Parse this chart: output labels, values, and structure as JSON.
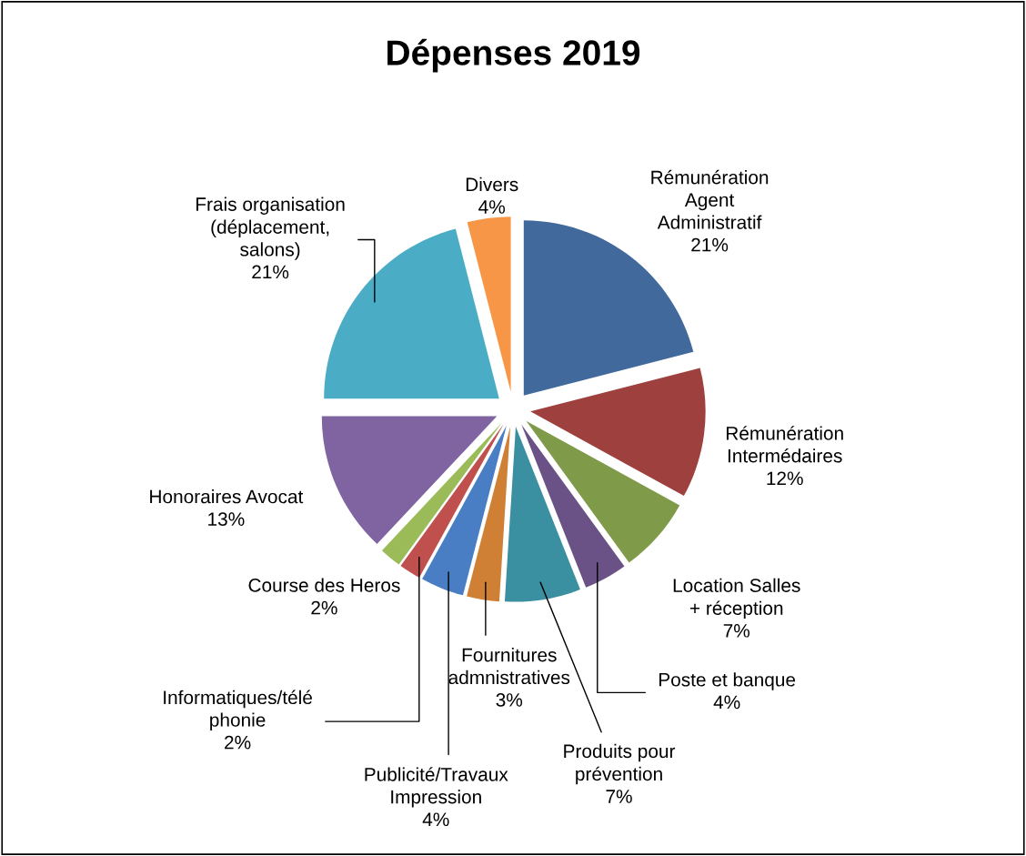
{
  "chart_data": {
    "type": "pie",
    "title": "Dépenses 2019",
    "categories": [
      "Rémunération\nAgent\nAdministratif",
      "Rémunération\nIntermédaires",
      "Location Salles\n+ réception",
      "Poste et banque",
      "Produits pour\nprévention",
      "Fournitures\nadmnistratives",
      "Publicité/Travaux\nImpression",
      "Informatiques/télé\nphonie",
      "Course des Heros",
      "Honoraires Avocat",
      "Frais organisation\n(déplacement,\nsalons)",
      "Divers"
    ],
    "values": [
      21,
      12,
      7,
      4,
      7,
      3,
      4,
      2,
      2,
      13,
      21,
      4
    ],
    "value_labels": [
      "21%",
      "12%",
      "7%",
      "4%",
      "7%",
      "3%",
      "4%",
      "2%",
      "2%",
      "13%",
      "21%",
      "4%"
    ],
    "colors": [
      "#41699c",
      "#9e403d",
      "#7f9b4a",
      "#6a5186",
      "#3a8fa1",
      "#d08035",
      "#4a7ec4",
      "#c0504d",
      "#9bbb59",
      "#8064a2",
      "#4bacc6",
      "#f79646"
    ]
  }
}
